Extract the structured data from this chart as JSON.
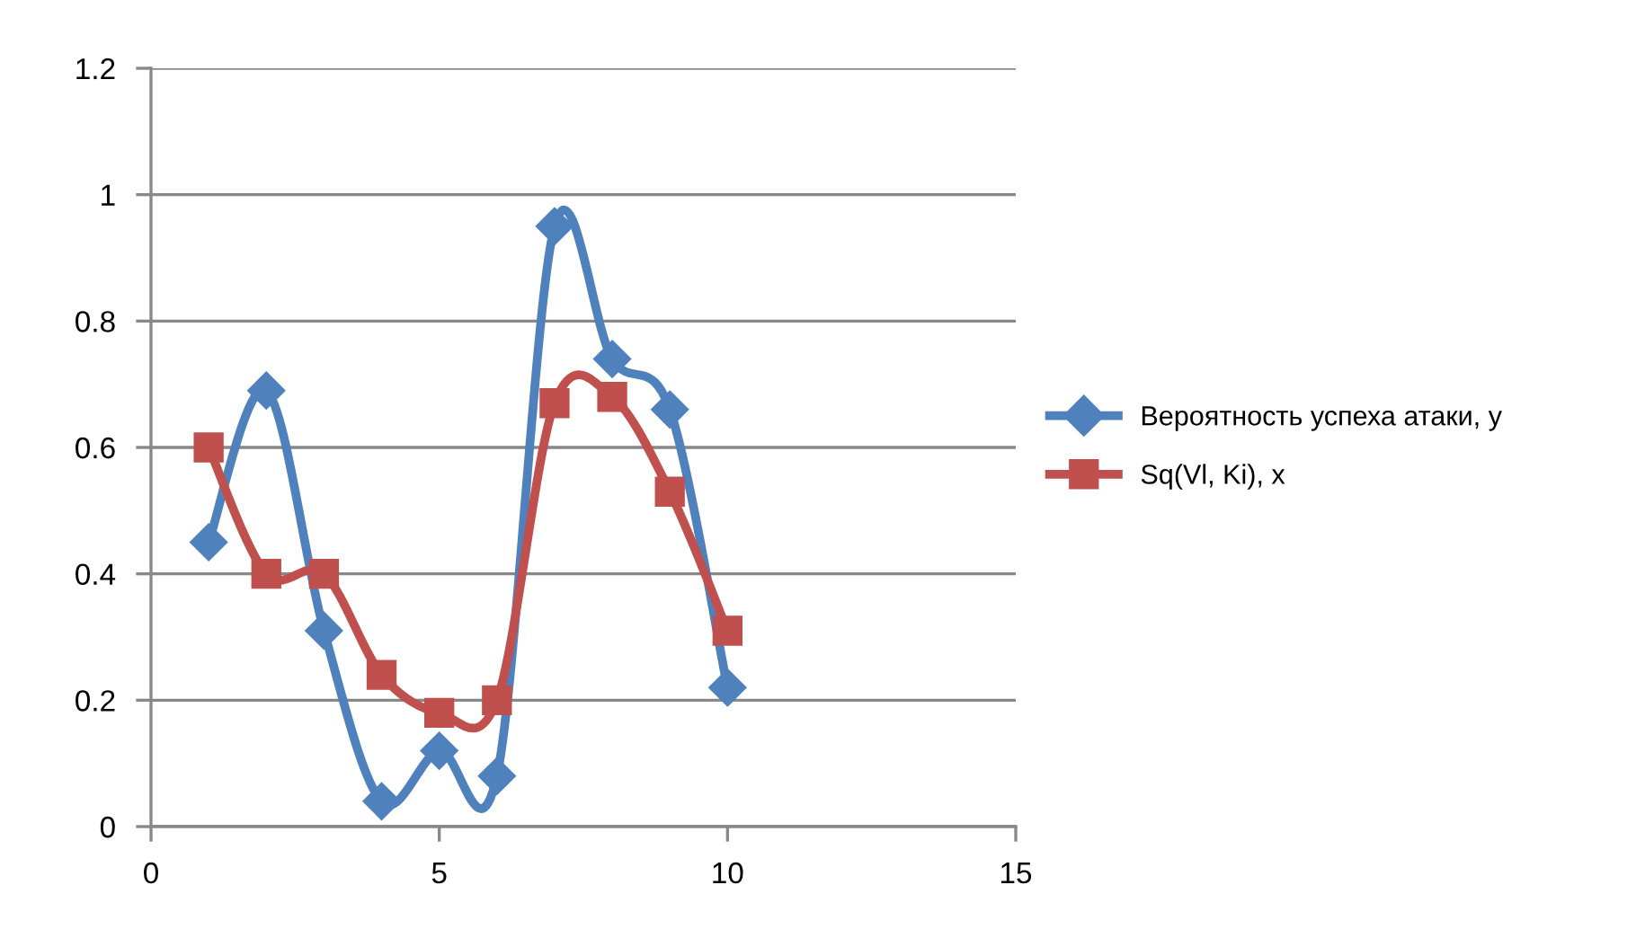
{
  "chart_data": {
    "type": "line",
    "x": [
      1,
      2,
      3,
      4,
      5,
      6,
      7,
      8,
      9,
      10
    ],
    "series": [
      {
        "name": "Вероятность успеха атаки, y",
        "color": "#4f81bd",
        "marker": "diamond",
        "values": [
          0.45,
          0.69,
          0.31,
          0.04,
          0.12,
          0.08,
          0.95,
          0.74,
          0.66,
          0.22
        ]
      },
      {
        "name": "Sq(Vl, Ki), x",
        "color": "#c0504d",
        "marker": "square",
        "values": [
          0.6,
          0.4,
          0.4,
          0.24,
          0.18,
          0.2,
          0.67,
          0.68,
          0.53,
          0.31
        ]
      }
    ],
    "xlim": [
      0,
      15
    ],
    "xticks": [
      0,
      5,
      10,
      15
    ],
    "ylim": [
      0,
      1.2
    ],
    "yticks": [
      {
        "value": 0,
        "label": "0"
      },
      0.2,
      0.4,
      0.6,
      0.8,
      {
        "value": 1,
        "label": "1"
      },
      1.2
    ],
    "grid": "y",
    "legend": "right",
    "line_style": "solid"
  }
}
